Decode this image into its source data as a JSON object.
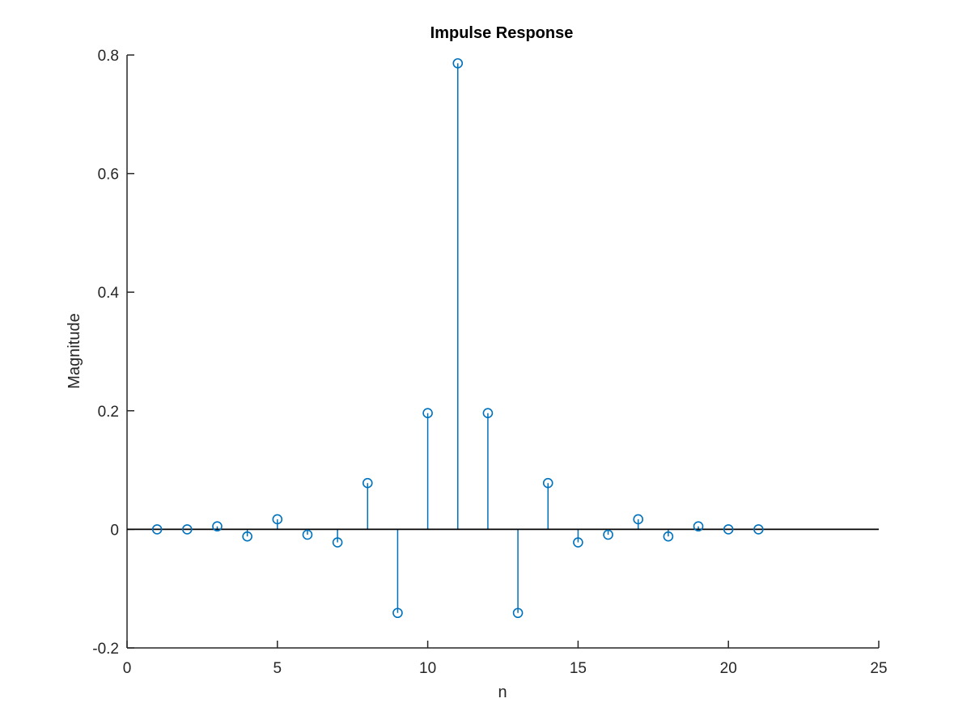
{
  "chart_data": {
    "type": "stem",
    "title": "Impulse Response",
    "xlabel": "n",
    "ylabel": "Magnitude",
    "xlim": [
      0,
      25
    ],
    "ylim": [
      -0.2,
      0.8
    ],
    "xticks": [
      "0",
      "5",
      "10",
      "15",
      "20",
      "25"
    ],
    "yticks": [
      "-0.2",
      "0",
      "0.2",
      "0.4",
      "0.6",
      "0.8"
    ],
    "grid": false,
    "baseline": 0,
    "color": "#0072bd",
    "baseline_color": "#000000",
    "x": [
      1,
      2,
      3,
      4,
      5,
      6,
      7,
      8,
      9,
      10,
      11,
      12,
      13,
      14,
      15,
      16,
      17,
      18,
      19,
      20,
      21
    ],
    "values": [
      0.0,
      0.0,
      0.005,
      -0.012,
      0.017,
      -0.009,
      -0.022,
      0.078,
      -0.141,
      0.196,
      0.786,
      0.196,
      -0.141,
      0.078,
      -0.022,
      -0.009,
      0.017,
      -0.012,
      0.005,
      0.0,
      0.0
    ]
  }
}
